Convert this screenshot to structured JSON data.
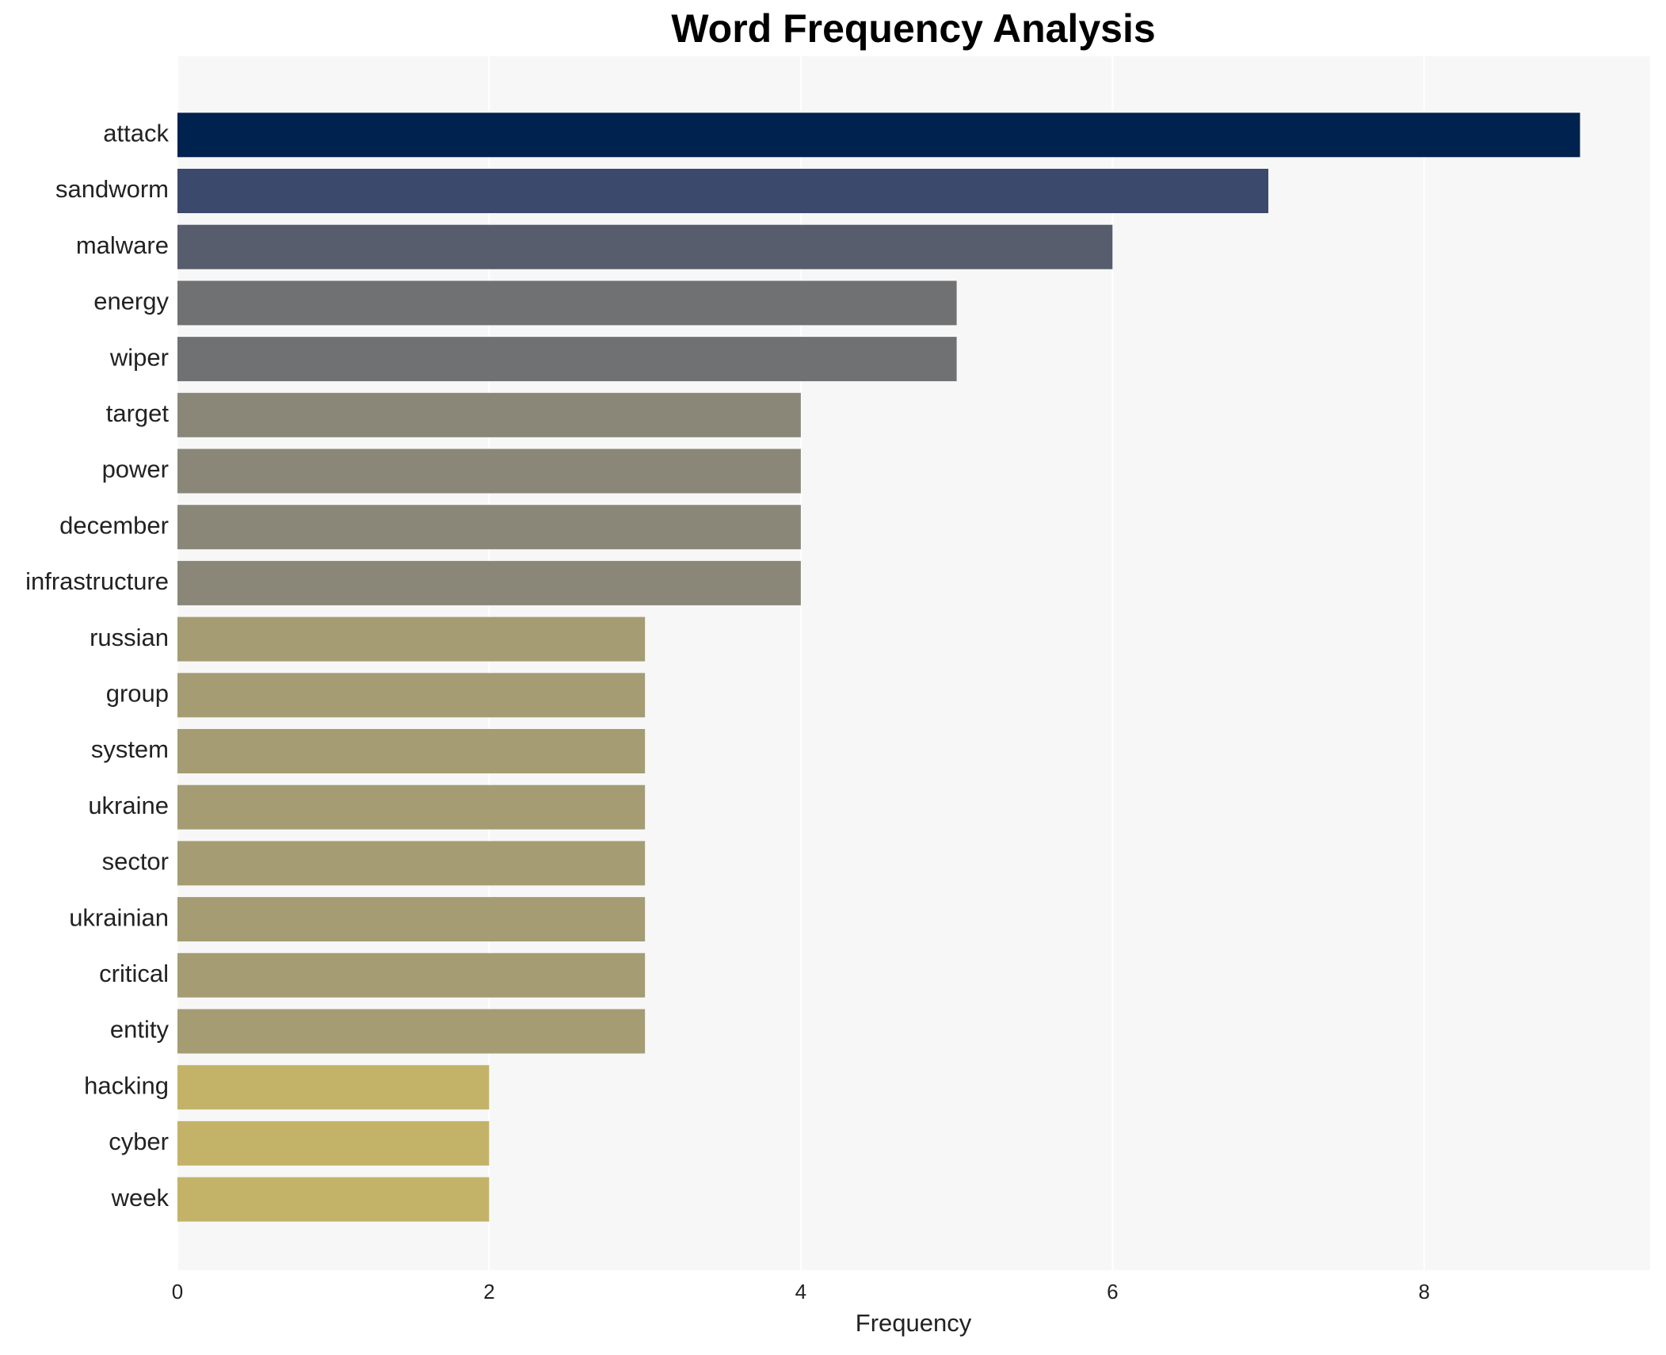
{
  "chart_data": {
    "type": "bar",
    "orientation": "horizontal",
    "title": "Word Frequency Analysis",
    "x_label": "Frequency",
    "categories": [
      "attack",
      "sandworm",
      "malware",
      "energy",
      "wiper",
      "target",
      "power",
      "december",
      "infrastructure",
      "russian",
      "group",
      "system",
      "ukraine",
      "sector",
      "ukrainian",
      "critical",
      "entity",
      "hacking",
      "cyber",
      "week"
    ],
    "values": [
      9,
      7,
      6,
      5,
      5,
      4,
      4,
      4,
      4,
      3,
      3,
      3,
      3,
      3,
      3,
      3,
      3,
      2,
      2,
      2
    ],
    "colors": [
      "#00224e",
      "#3b496c",
      "#575d6d",
      "#707173",
      "#707173",
      "#8a8779",
      "#8a8779",
      "#8a8779",
      "#8a8779",
      "#a59c74",
      "#a59c74",
      "#a59c74",
      "#a59c74",
      "#a59c74",
      "#a59c74",
      "#a59c74",
      "#a59c74",
      "#c3b369",
      "#c3b369",
      "#c3b369"
    ],
    "xlim": [
      0,
      9.45
    ],
    "xticks": [
      0,
      2,
      4,
      6,
      8
    ],
    "grid": true
  }
}
